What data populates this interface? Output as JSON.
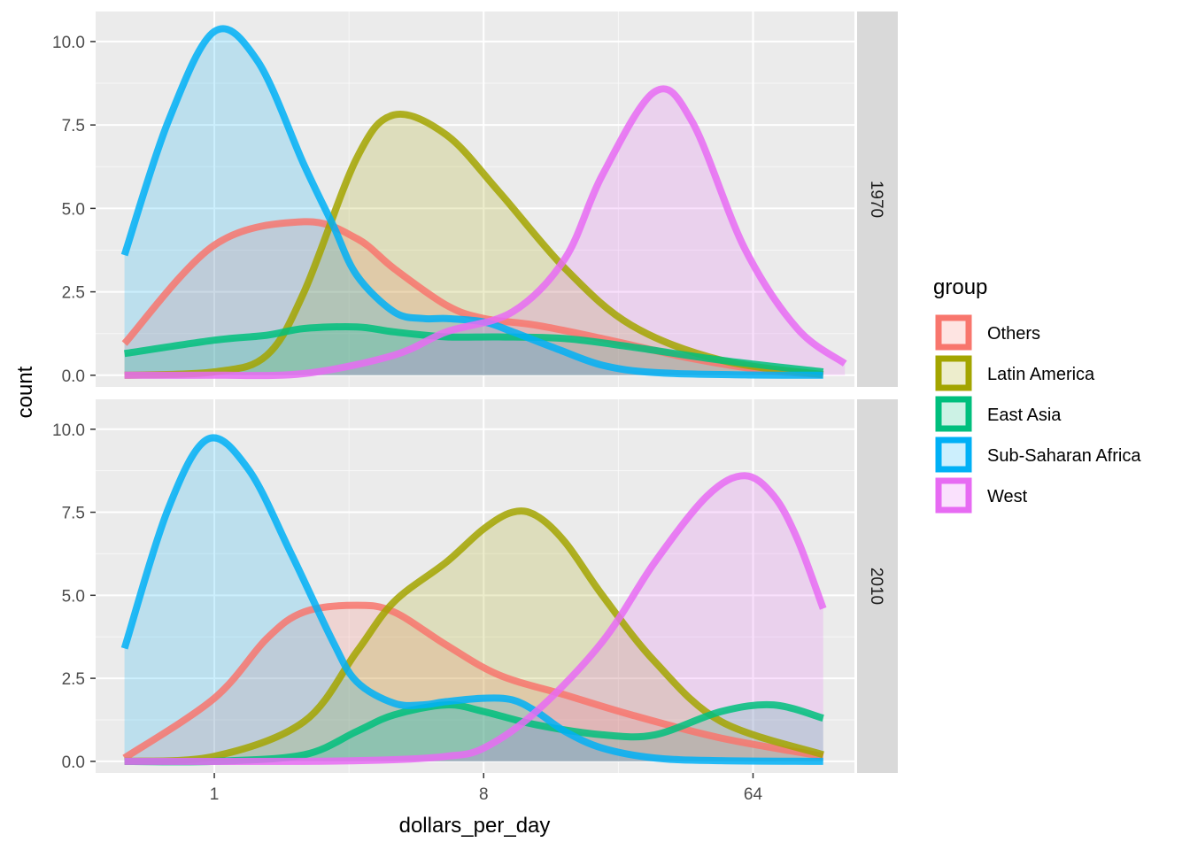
{
  "chart_data": {
    "type": "area",
    "xlabel": "dollars_per_day",
    "ylabel": "count",
    "x_scale": "log2",
    "x_ticks": [
      1,
      8,
      64
    ],
    "x_tick_labels": [
      "1",
      "8",
      "64"
    ],
    "xlim": [
      0.4,
      140
    ],
    "y_ticks": [
      0,
      2.5,
      5,
      7.5,
      10
    ],
    "y_tick_labels": [
      "0.0",
      "2.5",
      "5.0",
      "7.5",
      "10.0"
    ],
    "ylim": [
      -0.35,
      10.9
    ],
    "grid": true,
    "legend": {
      "title": "group",
      "position": "right",
      "entries": [
        "Others",
        "Latin America",
        "East Asia",
        "Sub-Saharan Africa",
        "West"
      ]
    },
    "colors": {
      "Others": "#F8766D",
      "Latin America": "#A3A500",
      "East Asia": "#00BF7D",
      "Sub-Saharan Africa": "#00B0F6",
      "West": "#E76BF3"
    },
    "facets": [
      {
        "label": "1970",
        "series": [
          {
            "name": "Others",
            "x": [
              0.5,
              1,
              2,
              3,
              4,
              6,
              8,
              12,
              20,
              40,
              70,
              110
            ],
            "y": [
              0.95,
              3.9,
              4.6,
              4.1,
              3.2,
              2.1,
              1.7,
              1.5,
              1.1,
              0.5,
              0.15,
              0.02
            ]
          },
          {
            "name": "Latin America",
            "x": [
              0.5,
              1,
              1.5,
              2,
              3,
              4,
              6,
              9,
              15,
              25,
              50,
              110
            ],
            "y": [
              0,
              0.1,
              0.6,
              2.5,
              6.5,
              7.8,
              7.2,
              5.5,
              3.2,
              1.5,
              0.45,
              0.02
            ]
          },
          {
            "name": "East Asia",
            "x": [
              0.5,
              1,
              1.5,
              2,
              3,
              4,
              6,
              9,
              15,
              25,
              50,
              110
            ],
            "y": [
              0.65,
              1.05,
              1.2,
              1.4,
              1.45,
              1.3,
              1.15,
              1.15,
              1.1,
              0.85,
              0.45,
              0.1
            ]
          },
          {
            "name": "Sub-Saharan Africa",
            "x": [
              0.5,
              0.7,
              1,
              1.4,
              2,
              2.5,
              3,
              4,
              5,
              6,
              8,
              10,
              14,
              20,
              30,
              60,
              110
            ],
            "y": [
              3.6,
              7.6,
              10.3,
              9.4,
              6.3,
              4.5,
              3.0,
              1.9,
              1.7,
              1.7,
              1.6,
              1.3,
              0.8,
              0.3,
              0.08,
              0.01,
              0
            ]
          },
          {
            "name": "West",
            "x": [
              0.5,
              1,
              2,
              4,
              6,
              10,
              15,
              20,
              30,
              40,
              60,
              90,
              130
            ],
            "y": [
              0,
              0,
              0.05,
              0.6,
              1.3,
              1.9,
              3.5,
              6.0,
              8.5,
              7.6,
              3.8,
              1.4,
              0.35
            ]
          }
        ]
      },
      {
        "label": "2010",
        "series": [
          {
            "name": "Others",
            "x": [
              0.5,
              1,
              1.5,
              2,
              3,
              4,
              6,
              9,
              15,
              25,
              50,
              110
            ],
            "y": [
              0.1,
              1.9,
              3.7,
              4.5,
              4.7,
              4.5,
              3.5,
              2.6,
              2.0,
              1.4,
              0.7,
              0.15
            ]
          },
          {
            "name": "Latin America",
            "x": [
              0.5,
              1,
              2,
              3,
              4,
              6,
              8,
              10,
              12,
              15,
              20,
              30,
              50,
              110
            ],
            "y": [
              0,
              0.15,
              1.2,
              3.3,
              4.8,
              6.0,
              7.0,
              7.5,
              7.4,
              6.6,
              5.0,
              3.0,
              1.2,
              0.2
            ]
          },
          {
            "name": "East Asia",
            "x": [
              0.5,
              1,
              2,
              3,
              4,
              6,
              8,
              12,
              20,
              30,
              50,
              75,
              110
            ],
            "y": [
              0,
              0,
              0.2,
              0.9,
              1.4,
              1.7,
              1.5,
              1.1,
              0.8,
              0.8,
              1.5,
              1.7,
              1.3
            ]
          },
          {
            "name": "Sub-Saharan Africa",
            "x": [
              0.5,
              0.7,
              0.95,
              1.3,
              1.8,
              2.5,
              3,
              4,
              5,
              6,
              8,
              10,
              12,
              15,
              20,
              30,
              50,
              110
            ],
            "y": [
              3.4,
              7.6,
              9.7,
              8.8,
              6.3,
              3.6,
              2.4,
              1.75,
              1.7,
              1.8,
              1.9,
              1.85,
              1.5,
              0.9,
              0.4,
              0.1,
              0.02,
              0
            ]
          },
          {
            "name": "West",
            "x": [
              0.5,
              2,
              4,
              6,
              8,
              12,
              20,
              30,
              45,
              60,
              75,
              90,
              110
            ],
            "y": [
              0,
              0,
              0.05,
              0.15,
              0.4,
              1.5,
              3.6,
              6.0,
              8.0,
              8.6,
              8.0,
              6.7,
              4.6
            ]
          }
        ]
      }
    ]
  }
}
